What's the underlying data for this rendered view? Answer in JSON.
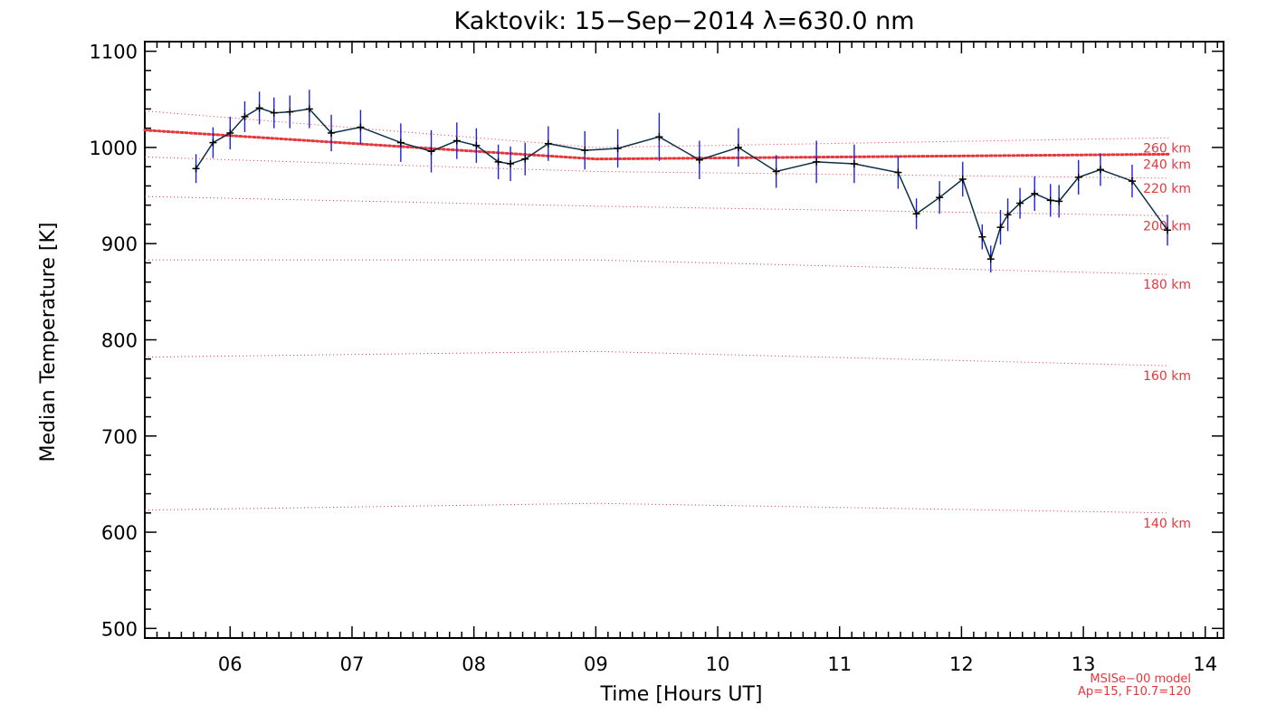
{
  "chart_data": {
    "type": "line",
    "title": "Kaktovik: 15−Sep−2014 λ=630.0 nm",
    "xlabel": "Time [Hours UT]",
    "ylabel": "Median Temperature [K]",
    "xlim": [
      5.3,
      14.15
    ],
    "ylim": [
      490,
      1110
    ],
    "x_ticks": [
      6,
      7,
      8,
      9,
      10,
      11,
      12,
      13,
      14
    ],
    "x_tick_labels": [
      "06",
      "07",
      "08",
      "09",
      "10",
      "11",
      "12",
      "13",
      "14"
    ],
    "y_ticks": [
      500,
      600,
      700,
      800,
      900,
      1000,
      1100
    ],
    "y_tick_labels": [
      "500",
      "600",
      "700",
      "800",
      "900",
      "1000",
      "1100"
    ],
    "grid": false,
    "series": [
      {
        "values_x": [
          5.72,
          5.86,
          6.0,
          6.12,
          6.24,
          6.36,
          6.49,
          6.65,
          6.83,
          7.07,
          7.4,
          7.65,
          7.86,
          8.02,
          8.2,
          8.3,
          8.42,
          8.61,
          8.91,
          9.18,
          9.52,
          9.85,
          10.17,
          10.48,
          10.81,
          11.12,
          11.48,
          11.63,
          11.82,
          12.01,
          12.17,
          12.24,
          12.32,
          12.38,
          12.48,
          12.6,
          12.73,
          12.8,
          12.96,
          13.14,
          13.4,
          13.69
        ],
        "values_y": [
          978,
          1005,
          1015,
          1032,
          1041,
          1036,
          1037,
          1040,
          1015,
          1021,
          1005,
          996,
          1007,
          1002,
          985,
          983,
          988,
          1004,
          997,
          999,
          1011,
          987,
          1000,
          975,
          985,
          983,
          974,
          931,
          948,
          967,
          907,
          884,
          917,
          930,
          942,
          952,
          945,
          944,
          969,
          977,
          965,
          914
        ],
        "error": [
          15,
          16,
          17,
          16,
          17,
          16,
          17,
          20,
          19,
          18,
          20,
          22,
          19,
          18,
          18,
          18,
          17,
          18,
          20,
          20,
          25,
          20,
          20,
          17,
          22,
          20,
          17,
          16,
          17,
          18,
          13,
          14,
          18,
          17,
          16,
          18,
          17,
          17,
          18,
          17,
          17,
          16
        ],
        "line_color": "#0a2f4a",
        "error_color": "#1f1fe6"
      }
    ],
    "model_curves": [
      {
        "label": "140 km",
        "x": [
          5.3,
          9.0,
          13.7
        ],
        "y": [
          623,
          630,
          620
        ],
        "bold": false
      },
      {
        "label": "160 km",
        "x": [
          5.3,
          9.0,
          13.7
        ],
        "y": [
          782,
          788,
          773
        ],
        "bold": false
      },
      {
        "label": "180 km",
        "x": [
          5.3,
          9.0,
          13.7
        ],
        "y": [
          883,
          883,
          868
        ],
        "bold": false
      },
      {
        "label": "200 km",
        "x": [
          5.3,
          9.0,
          13.7
        ],
        "y": [
          949,
          939,
          929
        ],
        "bold": false
      },
      {
        "label": "220 km",
        "x": [
          5.3,
          9.0,
          13.7
        ],
        "y": [
          990,
          975,
          968
        ],
        "bold": false
      },
      {
        "label": "240 km",
        "x": [
          5.3,
          9.0,
          13.7
        ],
        "y": [
          1018,
          988,
          993
        ],
        "bold": true
      },
      {
        "label": "260 km",
        "x": [
          5.3,
          9.0,
          13.7
        ],
        "y": [
          1038,
          1000,
          1010
        ],
        "bold": false
      }
    ],
    "model_color": "#e8363d",
    "annotations": [
      "MSISe−00 model",
      "Ap=15, F10.7=120"
    ]
  }
}
